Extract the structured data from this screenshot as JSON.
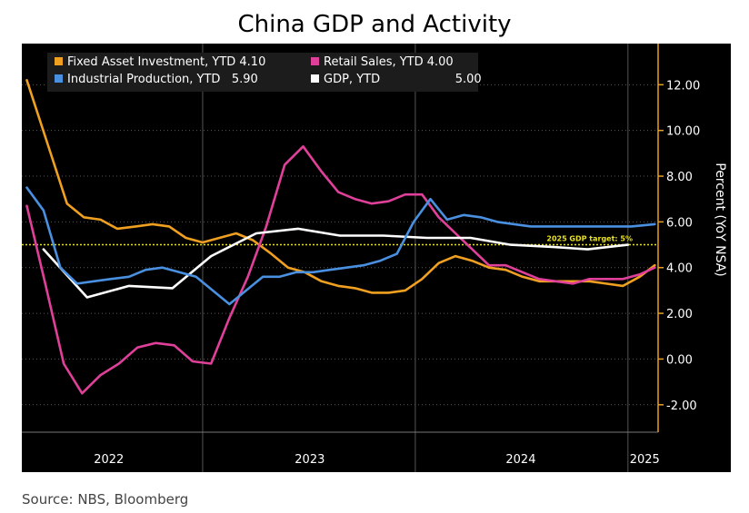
{
  "title": "China GDP and Activity",
  "source": "Source: NBS, Bloomberg",
  "colors": {
    "background": "#000000",
    "axis": "#e8a020",
    "grid": "#5a5a5a",
    "fai": "#f0a020",
    "ip": "#4a90e0",
    "retail": "#e0409a",
    "gdp": "#ffffff",
    "target": "#e8e020"
  },
  "chart_data": {
    "type": "line",
    "ylabel": "Percent (YoY NSA)",
    "ylim": [
      -3.2,
      13.8
    ],
    "yticks": [
      -2,
      0,
      2,
      4,
      6,
      8,
      10,
      12
    ],
    "ytick_labels": [
      "-2.00",
      "0.00",
      "2.00",
      "4.00",
      "6.00",
      "8.00",
      "10.00",
      "12.00"
    ],
    "xlim": [
      0,
      38
    ],
    "year_dividers": [
      10.8,
      23.5,
      36.2
    ],
    "years": [
      {
        "label": "2022",
        "x": 5.2
      },
      {
        "label": "2023",
        "x": 17.2
      },
      {
        "label": "2024",
        "x": 29.8
      },
      {
        "label": "2025",
        "x": 37.2
      }
    ],
    "target": {
      "value": 5,
      "label": "2025 GDP target: 5%"
    },
    "legend": [
      {
        "key": "fai",
        "text": "Fixed Asset Investment, YTD 4.10"
      },
      {
        "key": "retail",
        "text": "Retail Sales, YTD 4.00"
      },
      {
        "key": "ip",
        "text": "Industrial Production, YTD   5.90"
      },
      {
        "key": "gdp",
        "text": "GDP, YTD                    5.00"
      }
    ],
    "series": [
      {
        "key": "fai",
        "name": "Fixed Asset Investment, YTD",
        "last": 4.1,
        "x": [
          0.3,
          1.9,
          2.7,
          3.7,
          4.7,
          5.7,
          6.8,
          7.8,
          8.8,
          9.8,
          10.8,
          11.8,
          12.8,
          13.8,
          14.9,
          15.9,
          16.9,
          17.9,
          18.9,
          19.9,
          20.9,
          21.9,
          22.9,
          23.9,
          24.9,
          25.9,
          26.9,
          27.9,
          28.9,
          29.9,
          30.9,
          31.9,
          32.9,
          33.9,
          34.9,
          35.9,
          36.9,
          37.8
        ],
        "values": [
          12.2,
          8.6,
          6.8,
          6.2,
          6.1,
          5.7,
          5.8,
          5.9,
          5.8,
          5.3,
          5.1,
          5.3,
          5.5,
          5.2,
          4.6,
          4.0,
          3.8,
          3.4,
          3.2,
          3.1,
          2.9,
          2.9,
          3.0,
          3.5,
          4.2,
          4.5,
          4.3,
          4.0,
          3.9,
          3.6,
          3.4,
          3.4,
          3.4,
          3.4,
          3.3,
          3.2,
          3.6,
          4.1
        ]
      },
      {
        "key": "retail",
        "name": "Retail Sales, YTD",
        "last": 4.0,
        "x": [
          0.3,
          1.4,
          2.5,
          3.6,
          4.7,
          5.8,
          6.9,
          8.0,
          9.1,
          10.2,
          11.3,
          12.4,
          13.5,
          14.6,
          15.7,
          16.8,
          17.9,
          18.9,
          19.9,
          20.9,
          21.9,
          22.9,
          23.9,
          24.9,
          25.9,
          26.9,
          27.9,
          28.9,
          29.9,
          30.9,
          31.9,
          32.9,
          33.9,
          34.9,
          35.9,
          36.9,
          37.8
        ],
        "values": [
          6.7,
          3.3,
          -0.2,
          -1.5,
          -0.7,
          -0.2,
          0.5,
          0.7,
          0.6,
          -0.1,
          -0.2,
          1.8,
          3.6,
          5.8,
          8.5,
          9.3,
          8.2,
          7.3,
          7.0,
          6.8,
          6.9,
          7.2,
          7.2,
          6.2,
          5.5,
          4.8,
          4.1,
          4.1,
          3.8,
          3.5,
          3.4,
          3.3,
          3.5,
          3.5,
          3.5,
          3.7,
          4.0
        ]
      },
      {
        "key": "ip",
        "name": "Industrial Production, YTD",
        "last": 5.9,
        "x": [
          0.3,
          1.3,
          2.3,
          3.3,
          4.3,
          5.3,
          6.4,
          7.4,
          8.4,
          9.4,
          10.4,
          11.4,
          12.4,
          13.4,
          14.4,
          15.4,
          16.4,
          17.4,
          18.4,
          19.4,
          20.4,
          21.4,
          22.4,
          23.4,
          24.4,
          25.4,
          26.4,
          27.4,
          28.4,
          29.4,
          30.4,
          31.4,
          32.4,
          33.4,
          34.4,
          35.4,
          36.4,
          37.8
        ],
        "values": [
          7.5,
          6.5,
          4.0,
          3.3,
          3.4,
          3.5,
          3.6,
          3.9,
          4.0,
          3.8,
          3.6,
          3.0,
          2.4,
          3.0,
          3.6,
          3.6,
          3.8,
          3.8,
          3.9,
          4.0,
          4.1,
          4.3,
          4.6,
          6.0,
          7.0,
          6.1,
          6.3,
          6.2,
          6.0,
          5.9,
          5.8,
          5.8,
          5.8,
          5.8,
          5.8,
          5.8,
          5.8,
          5.9
        ]
      },
      {
        "key": "gdp",
        "name": "GDP, YTD",
        "last": 5.0,
        "x": [
          1.3,
          3.9,
          6.4,
          9.0,
          11.3,
          14.0,
          16.5,
          19.0,
          21.6,
          24.2,
          26.8,
          29.2,
          31.8,
          33.8,
          36.2
        ],
        "values": [
          4.8,
          2.7,
          3.2,
          3.1,
          4.5,
          5.5,
          5.7,
          5.4,
          5.4,
          5.3,
          5.3,
          5.0,
          4.9,
          4.8,
          5.0
        ]
      }
    ]
  }
}
